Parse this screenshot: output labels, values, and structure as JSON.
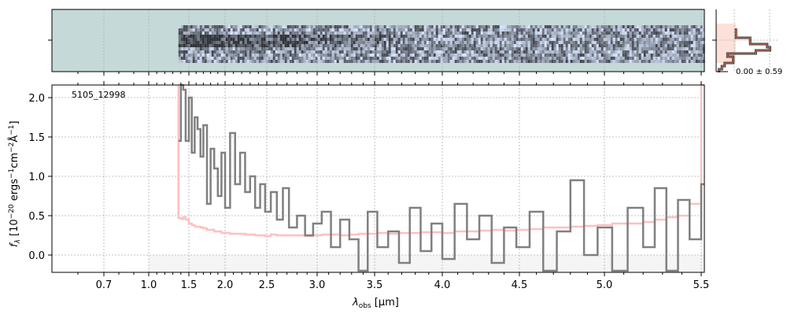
{
  "chart_data": {
    "type": "line",
    "object_label": "5105_12998",
    "xlabel_main": "λ",
    "xlabel_sub": "obs",
    "xlabel_unit": " [μm]",
    "ylabel": "f_λ [10^-20 ergs^-1 cm^-2 Å^-1]",
    "ylabel_parts": {
      "f": "f",
      "lam": "λ",
      "a": " [10",
      "e1": "−20",
      "b": " ergs",
      "e2": "−1",
      "c": "cm",
      "e3": "−2",
      "d": "Å",
      "e4": "−1",
      "e": "]"
    },
    "xticks": [
      0.7,
      1.0,
      1.5,
      2.0,
      2.5,
      3.0,
      3.5,
      4.0,
      4.5,
      5.0,
      5.5
    ],
    "xtick_labels": [
      "0.7",
      "1.0",
      "1.5",
      "2.0",
      "2.5",
      "3.0",
      "3.5",
      "4.0",
      "4.5",
      "5.0",
      "5.5"
    ],
    "yticks": [
      0.0,
      0.5,
      1.0,
      1.5,
      2.0
    ],
    "ytick_labels": [
      "0.0",
      "0.5",
      "1.0",
      "1.5",
      "2.0"
    ],
    "ylim": [
      -0.22,
      2.16
    ],
    "grid": true,
    "series": [
      {
        "name": "flux",
        "color": "#808080",
        "x": [
          1.37,
          1.4,
          1.43,
          1.46,
          1.5,
          1.54,
          1.58,
          1.62,
          1.66,
          1.7,
          1.75,
          1.8,
          1.85,
          1.9,
          1.95,
          2.0,
          2.06,
          2.12,
          2.18,
          2.24,
          2.3,
          2.36,
          2.42,
          2.48,
          2.54,
          2.6,
          2.66,
          2.72,
          2.8,
          2.88,
          2.96,
          3.04,
          3.12,
          3.2,
          3.28,
          3.36,
          3.44,
          3.52,
          3.6,
          3.68,
          3.76,
          3.84,
          3.92,
          4.0,
          4.08,
          4.16,
          4.24,
          4.32,
          4.4,
          4.48,
          4.56,
          4.64,
          4.72,
          4.8,
          4.88,
          4.96,
          5.04,
          5.12,
          5.2,
          5.26,
          5.32,
          5.38,
          5.44,
          5.5
        ],
        "y": [
          1.45,
          2.2,
          2.1,
          1.45,
          2.0,
          1.3,
          1.75,
          1.6,
          1.25,
          1.65,
          0.65,
          1.35,
          1.1,
          0.75,
          1.3,
          0.6,
          1.55,
          0.9,
          1.3,
          0.8,
          1.0,
          0.6,
          0.9,
          0.55,
          0.8,
          0.45,
          0.85,
          0.35,
          0.5,
          0.25,
          0.4,
          0.55,
          0.1,
          0.45,
          0.2,
          -0.2,
          0.55,
          0.1,
          0.3,
          -0.1,
          0.6,
          0.05,
          0.4,
          -0.05,
          0.65,
          0.2,
          0.5,
          -0.1,
          0.35,
          0.1,
          0.55,
          -0.2,
          0.3,
          0.95,
          0.0,
          0.35,
          -0.2,
          0.6,
          0.1,
          0.85,
          -0.2,
          0.7,
          0.2,
          0.9
        ]
      },
      {
        "name": "error",
        "color": "#ffc0c0",
        "y": [
          0.47,
          0.46,
          0.48,
          0.45,
          0.4,
          0.38,
          0.36,
          0.36,
          0.35,
          0.34,
          0.32,
          0.32,
          0.3,
          0.3,
          0.28,
          0.28,
          0.27,
          0.27,
          0.27,
          0.26,
          0.26,
          0.25,
          0.25,
          0.24,
          0.26,
          0.25,
          0.25,
          0.25,
          0.25,
          0.24,
          0.25,
          0.26,
          0.26,
          0.25,
          0.26,
          0.27,
          0.27,
          0.28,
          0.27,
          0.28,
          0.28,
          0.29,
          0.29,
          0.28,
          0.3,
          0.3,
          0.31,
          0.32,
          0.31,
          0.32,
          0.33,
          0.35,
          0.35,
          0.36,
          0.37,
          0.38,
          0.4,
          0.4,
          0.42,
          0.45,
          0.48,
          0.5,
          0.65,
          2.2
        ]
      }
    ],
    "inset": {
      "label": "0.00 ± 0.59",
      "profile": [
        0.35,
        0.35,
        0.35,
        0.6,
        0.6,
        0.9,
        0.95,
        0.7,
        0.2,
        0.3,
        0.3,
        0.15,
        0.1,
        0.05
      ]
    },
    "colors": {
      "spec2d_bg": "#c5d9d9",
      "shade": "#f5f5f5"
    }
  }
}
